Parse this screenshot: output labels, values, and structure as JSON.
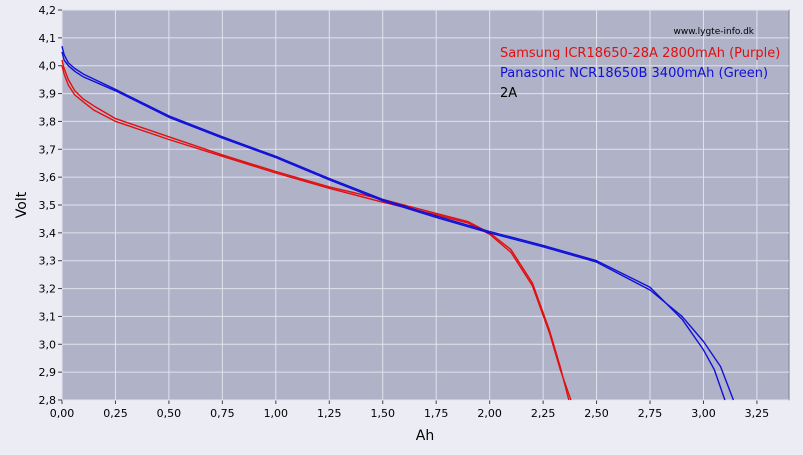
{
  "chart_data": {
    "type": "line",
    "xlabel": "Ah",
    "ylabel": "Volt",
    "xlim": [
      0,
      3.4
    ],
    "ylim": [
      2.8,
      4.2
    ],
    "x_ticks": [
      "0,00",
      "0,25",
      "0,50",
      "0,75",
      "1,00",
      "1,25",
      "1,50",
      "1,75",
      "2,00",
      "2,25",
      "2,50",
      "2,75",
      "3,00",
      "3,25"
    ],
    "y_ticks": [
      "2,8",
      "2,9",
      "3,0",
      "3,1",
      "3,2",
      "3,3",
      "3,4",
      "3,5",
      "3,6",
      "3,7",
      "3,8",
      "3,9",
      "4,0",
      "4,1",
      "4,2"
    ],
    "grid": true,
    "watermark": "www.lygte-info.dk",
    "legend_position": "top-right",
    "annotation": "2A",
    "colors": {
      "plot_bg": "#B0B2C8",
      "page_bg": "#ECECF4",
      "grid": "#E2E2EC",
      "red": "#E01010",
      "blue": "#1010D8"
    },
    "series": [
      {
        "name": "Samsung ICR18650-28A 2800mAh (Purple)",
        "color": "#E01010",
        "curves": [
          [
            [
              0.0,
              4.02
            ],
            [
              0.01,
              3.99
            ],
            [
              0.03,
              3.95
            ],
            [
              0.06,
              3.91
            ],
            [
              0.1,
              3.88
            ],
            [
              0.15,
              3.855
            ],
            [
              0.25,
              3.81
            ],
            [
              0.5,
              3.745
            ],
            [
              0.75,
              3.68
            ],
            [
              1.0,
              3.62
            ],
            [
              1.25,
              3.565
            ],
            [
              1.5,
              3.52
            ],
            [
              1.75,
              3.47
            ],
            [
              1.9,
              3.44
            ],
            [
              2.0,
              3.4
            ],
            [
              2.1,
              3.34
            ],
            [
              2.2,
              3.22
            ],
            [
              2.28,
              3.05
            ],
            [
              2.33,
              2.92
            ],
            [
              2.37,
              2.8
            ]
          ],
          [
            [
              0.0,
              4.0
            ],
            [
              0.01,
              3.97
            ],
            [
              0.03,
              3.93
            ],
            [
              0.06,
              3.895
            ],
            [
              0.1,
              3.87
            ],
            [
              0.15,
              3.84
            ],
            [
              0.25,
              3.8
            ],
            [
              0.5,
              3.735
            ],
            [
              0.75,
              3.675
            ],
            [
              1.0,
              3.615
            ],
            [
              1.25,
              3.56
            ],
            [
              1.5,
              3.51
            ],
            [
              1.75,
              3.465
            ],
            [
              1.9,
              3.435
            ],
            [
              2.0,
              3.395
            ],
            [
              2.1,
              3.33
            ],
            [
              2.2,
              3.21
            ],
            [
              2.28,
              3.04
            ],
            [
              2.33,
              2.91
            ],
            [
              2.38,
              2.8
            ]
          ]
        ]
      },
      {
        "name": "Panasonic NCR18650B 3400mAh (Green)",
        "color": "#1010D8",
        "curves": [
          [
            [
              0.0,
              4.07
            ],
            [
              0.01,
              4.04
            ],
            [
              0.03,
              4.01
            ],
            [
              0.06,
              3.99
            ],
            [
              0.1,
              3.97
            ],
            [
              0.25,
              3.915
            ],
            [
              0.5,
              3.82
            ],
            [
              0.75,
              3.745
            ],
            [
              1.0,
              3.675
            ],
            [
              1.25,
              3.595
            ],
            [
              1.5,
              3.52
            ],
            [
              1.75,
              3.46
            ],
            [
              2.0,
              3.405
            ],
            [
              2.25,
              3.355
            ],
            [
              2.5,
              3.3
            ],
            [
              2.75,
              3.205
            ],
            [
              2.9,
              3.09
            ],
            [
              3.0,
              2.98
            ],
            [
              3.05,
              2.91
            ],
            [
              3.1,
              2.8
            ]
          ],
          [
            [
              0.0,
              4.05
            ],
            [
              0.01,
              4.02
            ],
            [
              0.03,
              4.0
            ],
            [
              0.06,
              3.98
            ],
            [
              0.1,
              3.96
            ],
            [
              0.25,
              3.91
            ],
            [
              0.5,
              3.815
            ],
            [
              0.75,
              3.74
            ],
            [
              1.0,
              3.67
            ],
            [
              1.25,
              3.59
            ],
            [
              1.5,
              3.515
            ],
            [
              1.75,
              3.455
            ],
            [
              2.0,
              3.4
            ],
            [
              2.25,
              3.35
            ],
            [
              2.5,
              3.295
            ],
            [
              2.75,
              3.195
            ],
            [
              2.9,
              3.1
            ],
            [
              3.0,
              3.01
            ],
            [
              3.08,
              2.92
            ],
            [
              3.14,
              2.8
            ]
          ]
        ]
      }
    ]
  }
}
